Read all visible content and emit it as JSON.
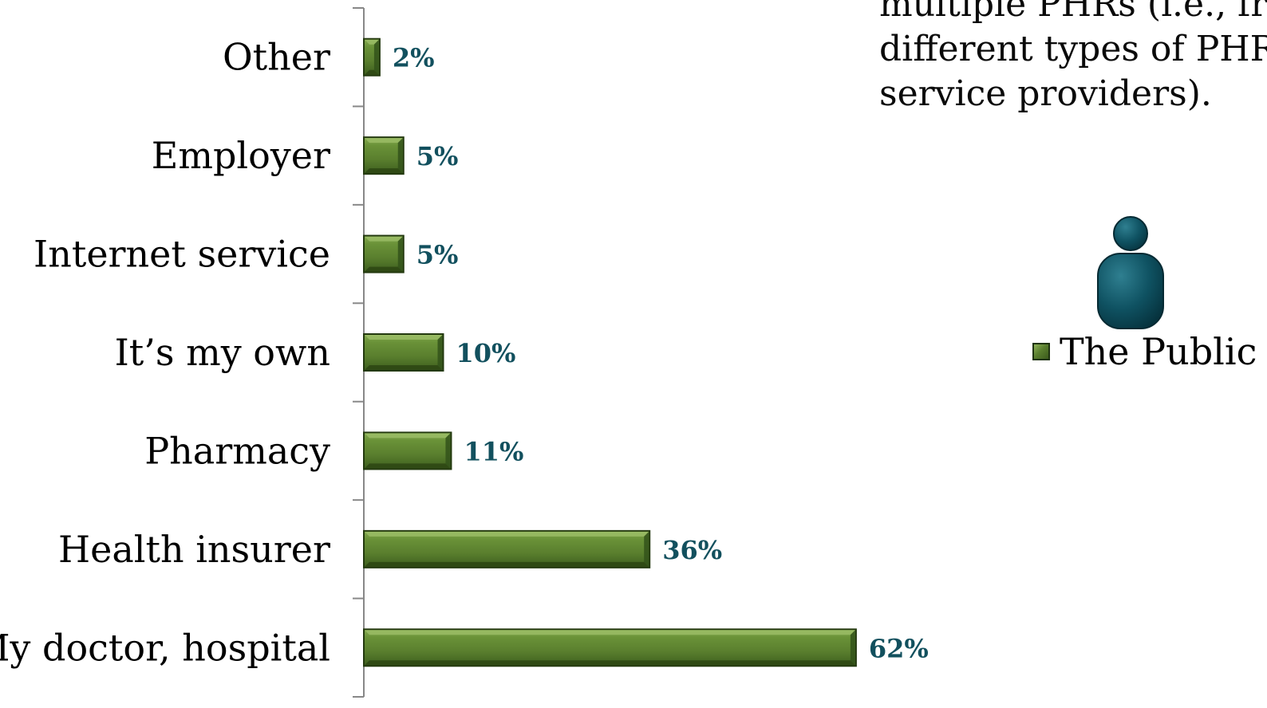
{
  "note_lines": [
    "multiple PHRs (i.e., fro",
    "different types of PHR",
    "service providers)."
  ],
  "legend": {
    "label": "The Public",
    "icon": "person-icon"
  },
  "colors": {
    "bar": "#5a7f2e",
    "bar_dark": "#2f4a17",
    "bar_light": "#8fb35a",
    "label": "#12505e",
    "icon": "#0f5262"
  },
  "chart_data": {
    "type": "bar",
    "orientation": "horizontal",
    "categories": [
      "Other",
      "Employer",
      "Internet service",
      "It’s my own",
      "Pharmacy",
      "Health insurer",
      "My doctor, hospital"
    ],
    "values": [
      2,
      5,
      5,
      10,
      11,
      36,
      62
    ],
    "value_labels": [
      "2%",
      "5%",
      "5%",
      "10%",
      "11%",
      "36%",
      "62%"
    ],
    "series": [
      {
        "name": "The Public",
        "values": [
          2,
          5,
          5,
          10,
          11,
          36,
          62
        ]
      }
    ],
    "xlim": [
      0,
      100
    ],
    "grid": false,
    "legend_position": "right"
  }
}
